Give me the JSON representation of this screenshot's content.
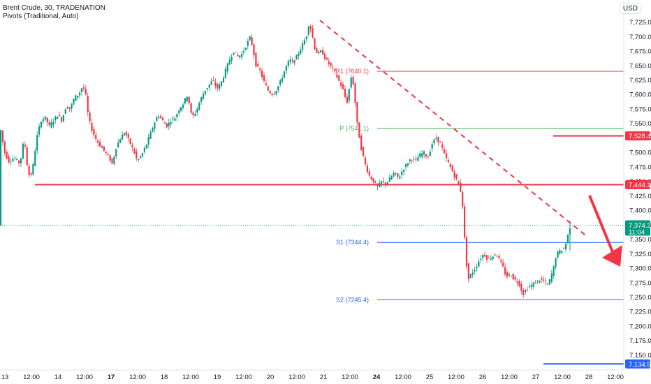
{
  "header": {
    "title": "Brent Crude, 30, TRADENATION",
    "indicator": "Pivots (Traditional, Auto)",
    "currency": "USD"
  },
  "colors": {
    "up": "#089981",
    "down": "#f23645",
    "pivot_r": "#f23645",
    "pivot_p": "#4caf50",
    "pivot_s": "#2962ff",
    "level": "#f23645",
    "trend": "#f23645",
    "axis_text": "#131722",
    "grid": "#f0f3fa"
  },
  "chart_data": {
    "type": "candlestick",
    "y_axis": {
      "ticks": [
        "7,725.0",
        "7,700.0",
        "7,675.0",
        "7,650.0",
        "7,625.0",
        "7,600.0",
        "7,575.0",
        "7,550.0",
        "7,525.0",
        "7,500.0",
        "7,475.0",
        "7,450.0",
        "7,425.0",
        "7,400.0",
        "7,375.0",
        "7,350.0",
        "7,325.0",
        "7,300.0",
        "7,275.0",
        "7,250.0",
        "7,225.0",
        "7,200.0",
        "7,175.0",
        "7,150.0"
      ],
      "range": [
        7130,
        7745
      ]
    },
    "x_axis": {
      "ticks": [
        {
          "label": "13",
          "bold": false
        },
        {
          "label": "12:00",
          "bold": false
        },
        {
          "label": "14",
          "bold": false
        },
        {
          "label": "12:00",
          "bold": false
        },
        {
          "label": "17",
          "bold": true
        },
        {
          "label": "12:00",
          "bold": false
        },
        {
          "label": "18",
          "bold": false
        },
        {
          "label": "12:00",
          "bold": false
        },
        {
          "label": "19",
          "bold": false
        },
        {
          "label": "12:00",
          "bold": false
        },
        {
          "label": "20",
          "bold": false
        },
        {
          "label": "12:00",
          "bold": false
        },
        {
          "label": "21",
          "bold": false
        },
        {
          "label": "12:00",
          "bold": false
        },
        {
          "label": "24",
          "bold": true
        },
        {
          "label": "12:00",
          "bold": false
        },
        {
          "label": "25",
          "bold": false
        },
        {
          "label": "12:00",
          "bold": false
        },
        {
          "label": "26",
          "bold": false
        },
        {
          "label": "12:00",
          "bold": false
        },
        {
          "label": "27",
          "bold": false
        },
        {
          "label": "12:00",
          "bold": false
        },
        {
          "label": "28",
          "bold": false
        },
        {
          "label": "12:00",
          "bold": false
        }
      ]
    },
    "price_path": [
      [
        0,
        7555
      ],
      [
        8,
        7500
      ],
      [
        14,
        7485
      ],
      [
        22,
        7490
      ],
      [
        30,
        7480
      ],
      [
        36,
        7525
      ],
      [
        40,
        7480
      ],
      [
        44,
        7455
      ],
      [
        48,
        7470
      ],
      [
        54,
        7525
      ],
      [
        60,
        7555
      ],
      [
        66,
        7560
      ],
      [
        72,
        7545
      ],
      [
        78,
        7555
      ],
      [
        84,
        7565
      ],
      [
        90,
        7555
      ],
      [
        96,
        7580
      ],
      [
        102,
        7575
      ],
      [
        108,
        7595
      ],
      [
        114,
        7600
      ],
      [
        120,
        7615
      ],
      [
        124,
        7600
      ],
      [
        128,
        7560
      ],
      [
        134,
        7535
      ],
      [
        140,
        7520
      ],
      [
        146,
        7510
      ],
      [
        152,
        7500
      ],
      [
        158,
        7490
      ],
      [
        162,
        7480
      ],
      [
        168,
        7510
      ],
      [
        174,
        7525
      ],
      [
        180,
        7535
      ],
      [
        186,
        7520
      ],
      [
        192,
        7505
      ],
      [
        198,
        7485
      ],
      [
        204,
        7495
      ],
      [
        210,
        7510
      ],
      [
        216,
        7530
      ],
      [
        222,
        7550
      ],
      [
        228,
        7565
      ],
      [
        234,
        7555
      ],
      [
        240,
        7545
      ],
      [
        246,
        7555
      ],
      [
        252,
        7560
      ],
      [
        258,
        7575
      ],
      [
        264,
        7585
      ],
      [
        270,
        7600
      ],
      [
        276,
        7560
      ],
      [
        282,
        7570
      ],
      [
        288,
        7590
      ],
      [
        294,
        7605
      ],
      [
        300,
        7615
      ],
      [
        306,
        7625
      ],
      [
        312,
        7610
      ],
      [
        318,
        7620
      ],
      [
        324,
        7640
      ],
      [
        330,
        7660
      ],
      [
        336,
        7675
      ],
      [
        342,
        7665
      ],
      [
        348,
        7670
      ],
      [
        354,
        7685
      ],
      [
        360,
        7700
      ],
      [
        364,
        7675
      ],
      [
        368,
        7650
      ],
      [
        374,
        7640
      ],
      [
        380,
        7620
      ],
      [
        386,
        7605
      ],
      [
        392,
        7600
      ],
      [
        398,
        7610
      ],
      [
        404,
        7625
      ],
      [
        410,
        7645
      ],
      [
        416,
        7660
      ],
      [
        422,
        7655
      ],
      [
        428,
        7670
      ],
      [
        434,
        7685
      ],
      [
        440,
        7700
      ],
      [
        444,
        7725
      ],
      [
        448,
        7705
      ],
      [
        452,
        7680
      ],
      [
        456,
        7670
      ],
      [
        462,
        7675
      ],
      [
        468,
        7660
      ],
      [
        474,
        7650
      ],
      [
        480,
        7640
      ],
      [
        486,
        7625
      ],
      [
        492,
        7610
      ],
      [
        498,
        7585
      ],
      [
        504,
        7630
      ],
      [
        508,
        7615
      ],
      [
        512,
        7555
      ],
      [
        518,
        7510
      ],
      [
        524,
        7480
      ],
      [
        530,
        7460
      ],
      [
        536,
        7450
      ],
      [
        542,
        7440
      ],
      [
        548,
        7450
      ],
      [
        554,
        7445
      ],
      [
        560,
        7455
      ],
      [
        566,
        7465
      ],
      [
        572,
        7455
      ],
      [
        578,
        7470
      ],
      [
        584,
        7480
      ],
      [
        590,
        7490
      ],
      [
        596,
        7485
      ],
      [
        602,
        7495
      ],
      [
        608,
        7500
      ],
      [
        614,
        7490
      ],
      [
        620,
        7515
      ],
      [
        626,
        7525
      ],
      [
        632,
        7515
      ],
      [
        638,
        7495
      ],
      [
        644,
        7480
      ],
      [
        650,
        7465
      ],
      [
        656,
        7450
      ],
      [
        660,
        7440
      ],
      [
        664,
        7405
      ],
      [
        668,
        7320
      ],
      [
        672,
        7280
      ],
      [
        676,
        7290
      ],
      [
        682,
        7300
      ],
      [
        688,
        7315
      ],
      [
        694,
        7325
      ],
      [
        700,
        7315
      ],
      [
        706,
        7320
      ],
      [
        712,
        7325
      ],
      [
        718,
        7310
      ],
      [
        722,
        7300
      ],
      [
        726,
        7285
      ],
      [
        732,
        7290
      ],
      [
        738,
        7280
      ],
      [
        744,
        7275
      ],
      [
        750,
        7255
      ],
      [
        756,
        7265
      ],
      [
        762,
        7270
      ],
      [
        768,
        7275
      ],
      [
        774,
        7280
      ],
      [
        780,
        7278
      ],
      [
        786,
        7270
      ],
      [
        790,
        7285
      ],
      [
        794,
        7300
      ],
      [
        798,
        7325
      ],
      [
        804,
        7330
      ],
      [
        810,
        7335
      ],
      [
        814,
        7355
      ],
      [
        818,
        7374
      ]
    ],
    "pivots": [
      {
        "name": "R1",
        "label": "R1 (7640.1)",
        "value": 7640.1
      },
      {
        "name": "P",
        "label": "P (7541.1)",
        "value": 7541.1
      },
      {
        "name": "S1",
        "label": "S1 (7344.4)",
        "value": 7344.4
      },
      {
        "name": "S2",
        "label": "S2 (7245.4)",
        "value": 7245.4
      }
    ],
    "levels": [
      {
        "value": 7528.4,
        "label": "7,528.4"
      },
      {
        "value": 7444.1,
        "label": "7,444.1"
      }
    ],
    "current": {
      "value": 7374.2,
      "label": "7,374.2",
      "countdown": "11:04"
    },
    "low_marker": {
      "value": 7134.5,
      "label": "7,134.5"
    },
    "trendline": {
      "from": [
        7728
      ],
      "to": [
        7355
      ]
    }
  }
}
